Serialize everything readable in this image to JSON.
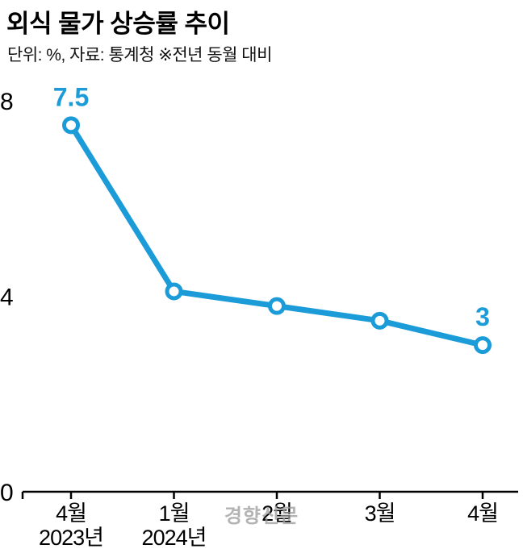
{
  "header": {
    "title": "외식 물가 상승률 추이",
    "subtitle": "단위: %, 자료: 통계청 ※전년 동월 대비"
  },
  "watermark": "경향신문",
  "chart_data": {
    "type": "line",
    "title": "외식 물가 상승률 추이",
    "unit_note": "단위: %, 자료: 통계청 ※전년 동월 대비",
    "categories": [
      "4월",
      "1월",
      "2월",
      "3월",
      "4월"
    ],
    "category_year_labels": [
      {
        "index": 0,
        "label": "2023년"
      },
      {
        "index": 1,
        "label": "2024년"
      }
    ],
    "values": [
      7.5,
      4.1,
      3.8,
      3.5,
      3
    ],
    "point_labels": [
      {
        "index": 0,
        "text": "7.5"
      },
      {
        "index": 4,
        "text": "3"
      }
    ],
    "y_ticks": [
      0,
      4,
      8
    ],
    "ylim": [
      0,
      8
    ],
    "grid": false,
    "legend": "none",
    "line_color": "#1b9cd8",
    "marker_style": "open-circle",
    "axis_color": "#000000"
  }
}
